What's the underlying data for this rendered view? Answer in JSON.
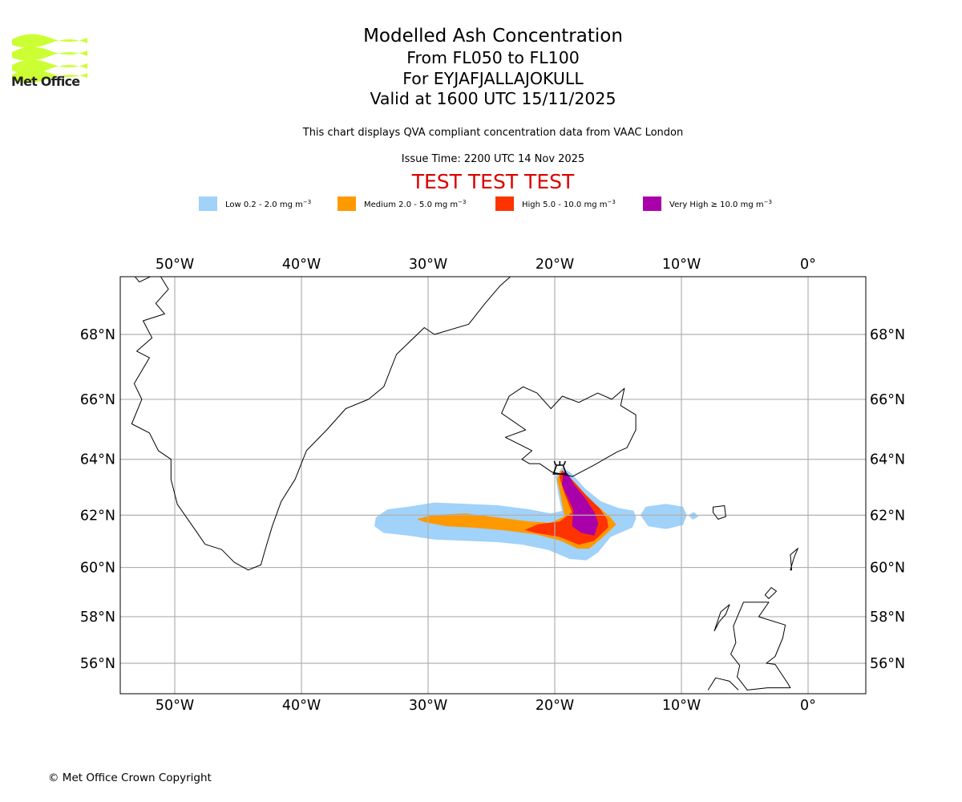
{
  "header": {
    "logo_text": "Met Office",
    "logo_color": "#ccff33",
    "title": "Modelled Ash Concentration",
    "subtitle_levels": "From FL050 to FL100",
    "subtitle_volcano": "For EYJAFJALLAJOKULL",
    "subtitle_valid": "Valid at 1600 UTC 15/11/2025",
    "qva_note": "This chart displays QVA compliant concentration data from VAAC London",
    "issue_time": "Issue Time: 2200 UTC 14 Nov 2025",
    "test_banner": "TEST TEST TEST",
    "test_color": "#dd0000"
  },
  "legend": [
    {
      "label": "Low 0.2 - 2.0 mg m",
      "unit_exp": "−3",
      "color": "#a0d2fa"
    },
    {
      "label": "Medium 2.0 - 5.0 mg m",
      "unit_exp": "−3",
      "color": "#ff9900"
    },
    {
      "label": "High 5.0 - 10.0 mg m",
      "unit_exp": "−3",
      "color": "#ff3300"
    },
    {
      "label": "Very High  ≥  10.0 mg m",
      "unit_exp": "−3",
      "color": "#aa00aa"
    }
  ],
  "footer": {
    "copyright": "© Met Office Crown Copyright"
  },
  "chart_data": {
    "type": "map",
    "projection": "mercator",
    "extent": {
      "lon": [
        -54.3,
        4.6
      ],
      "lat": [
        54.8,
        69.8
      ]
    },
    "grid": true,
    "lon_ticks": [
      -50,
      -40,
      -30,
      -20,
      -10,
      0
    ],
    "lon_tick_labels": [
      "50°W",
      "40°W",
      "30°W",
      "20°W",
      "10°W",
      "0°"
    ],
    "lat_ticks": [
      56,
      58,
      60,
      62,
      64,
      66,
      68
    ],
    "lat_tick_labels": [
      "56°N",
      "58°N",
      "60°N",
      "62°N",
      "64°N",
      "66°N",
      "68°N"
    ],
    "volcano": {
      "name": "EYJAFJALLAJOKULL",
      "lon": -19.6,
      "lat": 63.63,
      "symbol": "volcano-icon"
    },
    "ash_layers": [
      {
        "level": "Low",
        "color": "#a0d2fa",
        "polygons": [
          [
            [
              -34.1,
              61.9
            ],
            [
              -33.2,
              62.2
            ],
            [
              -31.5,
              62.3
            ],
            [
              -29.5,
              62.45
            ],
            [
              -27,
              62.4
            ],
            [
              -24.5,
              62.35
            ],
            [
              -22,
              62.2
            ],
            [
              -20.3,
              62.05
            ],
            [
              -19.4,
              62.15
            ],
            [
              -19.7,
              62.8
            ],
            [
              -19.9,
              63.4
            ],
            [
              -19.4,
              63.7
            ],
            [
              -18.7,
              63.5
            ],
            [
              -17.6,
              62.95
            ],
            [
              -16.4,
              62.5
            ],
            [
              -15,
              62.25
            ],
            [
              -13.8,
              62.15
            ],
            [
              -13.6,
              61.9
            ],
            [
              -13.9,
              61.55
            ],
            [
              -15.6,
              61.2
            ],
            [
              -16.6,
              60.6
            ],
            [
              -17.5,
              60.3
            ],
            [
              -18.8,
              60.35
            ],
            [
              -20.5,
              60.7
            ],
            [
              -22.5,
              60.9
            ],
            [
              -24.5,
              61.0
            ],
            [
              -27,
              61.05
            ],
            [
              -29.5,
              61.1
            ],
            [
              -31.6,
              61.25
            ],
            [
              -33.5,
              61.35
            ],
            [
              -34.2,
              61.6
            ]
          ],
          [
            [
              -13.2,
              62.0
            ],
            [
              -12.8,
              62.3
            ],
            [
              -11.2,
              62.4
            ],
            [
              -9.9,
              62.3
            ],
            [
              -9.6,
              62.0
            ],
            [
              -9.9,
              61.65
            ],
            [
              -11.2,
              61.5
            ],
            [
              -12.6,
              61.6
            ]
          ],
          [
            [
              -9.4,
              62.0
            ],
            [
              -9.0,
              62.1
            ],
            [
              -8.7,
              61.95
            ],
            [
              -9.1,
              61.85
            ]
          ]
        ]
      },
      {
        "level": "Medium",
        "color": "#ff9900",
        "polygons": [
          [
            [
              -30.8,
              61.85
            ],
            [
              -29.5,
              62.0
            ],
            [
              -27,
              62.05
            ],
            [
              -24.5,
              61.9
            ],
            [
              -22,
              61.75
            ],
            [
              -20.3,
              61.7
            ],
            [
              -19.2,
              61.95
            ],
            [
              -19.5,
              62.7
            ],
            [
              -19.8,
              63.3
            ],
            [
              -19.5,
              63.6
            ],
            [
              -19.0,
              63.45
            ],
            [
              -18.0,
              62.85
            ],
            [
              -16.7,
              62.35
            ],
            [
              -15.6,
              61.9
            ],
            [
              -15.2,
              61.65
            ],
            [
              -16.3,
              61.15
            ],
            [
              -17.3,
              60.75
            ],
            [
              -18.2,
              60.75
            ],
            [
              -19.5,
              61.05
            ],
            [
              -21.5,
              61.3
            ],
            [
              -24,
              61.45
            ],
            [
              -26.5,
              61.55
            ],
            [
              -28.5,
              61.6
            ],
            [
              -30.2,
              61.75
            ]
          ]
        ]
      },
      {
        "level": "High",
        "color": "#ff3300",
        "polygons": [
          [
            [
              -22.3,
              61.45
            ],
            [
              -21.3,
              61.65
            ],
            [
              -19.6,
              61.75
            ],
            [
              -18.6,
              62.1
            ],
            [
              -19.2,
              62.8
            ],
            [
              -19.6,
              63.4
            ],
            [
              -19.4,
              63.6
            ],
            [
              -18.8,
              63.35
            ],
            [
              -17.6,
              62.75
            ],
            [
              -16.5,
              62.25
            ],
            [
              -15.9,
              61.85
            ],
            [
              -15.8,
              61.55
            ],
            [
              -16.9,
              61.05
            ],
            [
              -18.1,
              60.9
            ],
            [
              -19.6,
              61.2
            ],
            [
              -21.5,
              61.35
            ]
          ]
        ]
      },
      {
        "level": "Very High",
        "color": "#aa00aa",
        "polygons": [
          [
            [
              -19.3,
              63.55
            ],
            [
              -19.4,
              63.1
            ],
            [
              -19.0,
              62.7
            ],
            [
              -18.5,
              62.2
            ],
            [
              -18.6,
              61.6
            ],
            [
              -17.9,
              61.35
            ],
            [
              -16.9,
              61.25
            ],
            [
              -16.6,
              61.7
            ],
            [
              -16.9,
              62.1
            ],
            [
              -17.6,
              62.6
            ],
            [
              -18.5,
              63.1
            ],
            [
              -19.0,
              63.5
            ]
          ]
        ]
      }
    ],
    "coastlines": [
      {
        "name": "greenland-east-coast",
        "points": [
          [
            -53.5,
            69.8
          ],
          [
            -52.8,
            69.5
          ],
          [
            -51.3,
            69.75
          ],
          [
            -50.5,
            69.3
          ],
          [
            -51.5,
            68.9
          ],
          [
            -50.8,
            68.6
          ],
          [
            -52.5,
            68.4
          ],
          [
            -51.8,
            67.9
          ],
          [
            -53.0,
            67.5
          ],
          [
            -52.0,
            67.3
          ],
          [
            -53.2,
            66.5
          ],
          [
            -52.6,
            66.0
          ],
          [
            -53.4,
            65.2
          ],
          [
            -52.0,
            64.9
          ],
          [
            -51.3,
            64.3
          ],
          [
            -50.3,
            64.0
          ],
          [
            -50.3,
            63.3
          ],
          [
            -49.8,
            62.4
          ],
          [
            -48.6,
            61.6
          ],
          [
            -47.6,
            60.9
          ],
          [
            -46.3,
            60.7
          ],
          [
            -45.3,
            60.2
          ],
          [
            -44.2,
            59.9
          ],
          [
            -43.2,
            60.1
          ],
          [
            -42.8,
            60.8
          ],
          [
            -42.3,
            61.6
          ],
          [
            -41.6,
            62.5
          ],
          [
            -40.5,
            63.3
          ],
          [
            -39.6,
            64.3
          ],
          [
            -38.0,
            65.0
          ],
          [
            -36.5,
            65.7
          ],
          [
            -34.7,
            66.0
          ],
          [
            -33.5,
            66.4
          ],
          [
            -32.5,
            67.4
          ],
          [
            -30.3,
            68.2
          ],
          [
            -29.5,
            68.0
          ],
          [
            -26.8,
            68.3
          ],
          [
            -25.5,
            68.9
          ],
          [
            -24.3,
            69.4
          ],
          [
            -23.0,
            69.8
          ]
        ]
      },
      {
        "name": "iceland",
        "points": [
          [
            -22.0,
            63.85
          ],
          [
            -22.6,
            64.0
          ],
          [
            -21.8,
            64.3
          ],
          [
            -23.9,
            64.75
          ],
          [
            -22.3,
            65.0
          ],
          [
            -24.2,
            65.55
          ],
          [
            -23.6,
            66.1
          ],
          [
            -22.5,
            66.4
          ],
          [
            -21.4,
            66.2
          ],
          [
            -20.3,
            65.7
          ],
          [
            -19.4,
            66.1
          ],
          [
            -18.1,
            65.9
          ],
          [
            -16.6,
            66.2
          ],
          [
            -15.5,
            66.0
          ],
          [
            -14.5,
            66.35
          ],
          [
            -14.8,
            65.8
          ],
          [
            -13.6,
            65.5
          ],
          [
            -13.6,
            65.0
          ],
          [
            -14.3,
            64.4
          ],
          [
            -15.1,
            64.25
          ],
          [
            -16.9,
            63.8
          ],
          [
            -18.6,
            63.4
          ],
          [
            -20.2,
            63.55
          ],
          [
            -21.2,
            63.85
          ]
        ]
      },
      {
        "name": "scotland-mainland",
        "points": [
          [
            -5.1,
            58.6
          ],
          [
            -3.1,
            58.6
          ],
          [
            -3.9,
            58.0
          ],
          [
            -1.8,
            57.65
          ],
          [
            -2.0,
            57.1
          ],
          [
            -2.6,
            56.3
          ],
          [
            -3.3,
            56.0
          ],
          [
            -2.6,
            55.95
          ],
          [
            -1.6,
            55.1
          ],
          [
            -1.4,
            54.9
          ],
          [
            -3.2,
            54.9
          ],
          [
            -4.8,
            54.8
          ],
          [
            -5.6,
            55.4
          ],
          [
            -5.4,
            55.9
          ],
          [
            -6.1,
            56.4
          ],
          [
            -5.7,
            56.9
          ],
          [
            -5.9,
            57.6
          ],
          [
            -5.1,
            58.6
          ]
        ]
      },
      {
        "name": "ireland-north",
        "points": [
          [
            -7.9,
            54.8
          ],
          [
            -7.3,
            55.35
          ],
          [
            -6.2,
            55.2
          ],
          [
            -5.5,
            54.8
          ]
        ]
      },
      {
        "name": "outer-hebrides",
        "points": [
          [
            -6.2,
            58.5
          ],
          [
            -6.9,
            58.2
          ],
          [
            -7.4,
            57.4
          ],
          [
            -7.0,
            57.8
          ],
          [
            -6.5,
            58.1
          ],
          [
            -6.2,
            58.5
          ]
        ]
      },
      {
        "name": "orkney",
        "points": [
          [
            -3.4,
            58.9
          ],
          [
            -2.9,
            59.2
          ],
          [
            -2.5,
            59.05
          ],
          [
            -3.1,
            58.75
          ],
          [
            -3.4,
            58.9
          ]
        ]
      },
      {
        "name": "shetland",
        "points": [
          [
            -1.4,
            59.9
          ],
          [
            -1.1,
            60.4
          ],
          [
            -0.8,
            60.75
          ],
          [
            -1.4,
            60.5
          ],
          [
            -1.3,
            59.9
          ]
        ]
      },
      {
        "name": "faroe-islands",
        "points": [
          [
            -7.5,
            62.3
          ],
          [
            -6.6,
            62.35
          ],
          [
            -6.5,
            61.95
          ],
          [
            -7.1,
            61.85
          ],
          [
            -7.5,
            62.1
          ],
          [
            -7.5,
            62.3
          ]
        ]
      }
    ]
  }
}
